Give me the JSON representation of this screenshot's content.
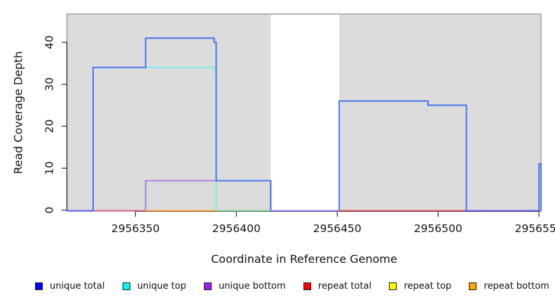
{
  "chart_data": {
    "type": "line",
    "subtype": "step-coverage",
    "title": "",
    "xlabel": "Coordinate in Reference Genome",
    "ylabel": "Read Coverage Depth",
    "xlim": [
      2956316,
      2956551
    ],
    "ylim": [
      0,
      46
    ],
    "grid": false,
    "plot_background": "#dcdcdc",
    "plot_border_color": "#9c9c9c",
    "axis_color": "#2b2b2b",
    "masked_region": {
      "x0": 2956417,
      "x1": 2956451,
      "fill": "#ffffff"
    },
    "x_ticks": [
      {
        "value": 2956350,
        "label": "2956350"
      },
      {
        "value": 2956400,
        "label": "2956400"
      },
      {
        "value": 2956450,
        "label": "2956450"
      },
      {
        "value": 2956500,
        "label": "2956500"
      },
      {
        "value": 2956550,
        "label": "2956550"
      }
    ],
    "y_ticks": [
      {
        "value": 0,
        "label": "0"
      },
      {
        "value": 10,
        "label": "10"
      },
      {
        "value": 20,
        "label": "20"
      },
      {
        "value": 30,
        "label": "30"
      },
      {
        "value": 40,
        "label": "40"
      }
    ],
    "series": [
      {
        "name": "unique top",
        "color": "#7de9e9",
        "runs": [
          [
            [
              2956329,
              2956389,
              34
            ],
            [
              2956389,
              2956390,
              33
            ]
          ]
        ]
      },
      {
        "name": "unique bottom",
        "color": "#b07de0",
        "runs": [
          [
            [
              2956355,
              2956417,
              7
            ]
          ]
        ]
      },
      {
        "name": "unique total",
        "color": "#4673f0",
        "runs": [
          [
            [
              2956329,
              2956355,
              34
            ],
            [
              2956355,
              2956389,
              41
            ],
            [
              2956389,
              2956390,
              40
            ],
            [
              2956390,
              2956417,
              7
            ]
          ],
          [
            [
              2956451,
              2956495,
              26
            ],
            [
              2956495,
              2956514,
              25
            ]
          ],
          [
            [
              2956550,
              2956551,
              11
            ]
          ]
        ]
      }
    ],
    "zero_coverage_segments": [
      {
        "x0": 2956316,
        "x1": 2956329,
        "color": "#5b5bf5"
      },
      {
        "x0": 2956329,
        "x1": 2956355,
        "color": "#e0638c"
      },
      {
        "x0": 2956355,
        "x1": 2956390,
        "color": "#ff9e3d"
      },
      {
        "x0": 2956390,
        "x1": 2956417,
        "color": "#85cc8f"
      },
      {
        "x0": 2956417,
        "x1": 2956451,
        "color": "#9a7cec"
      },
      {
        "x0": 2956451,
        "x1": 2956513,
        "color": "#e0505c"
      },
      {
        "x0": 2956513,
        "x1": 2956551,
        "color": "#6a5ae0"
      }
    ],
    "legend": [
      {
        "label": "unique total",
        "color": "#0000ff"
      },
      {
        "label": "unique top",
        "color": "#00ffff"
      },
      {
        "label": "unique bottom",
        "color": "#a020f0"
      },
      {
        "label": "repeat total",
        "color": "#ff0000"
      },
      {
        "label": "repeat top",
        "color": "#ffff00"
      },
      {
        "label": "repeat bottom",
        "color": "#ffa500"
      }
    ],
    "legend_position": "bottom"
  }
}
